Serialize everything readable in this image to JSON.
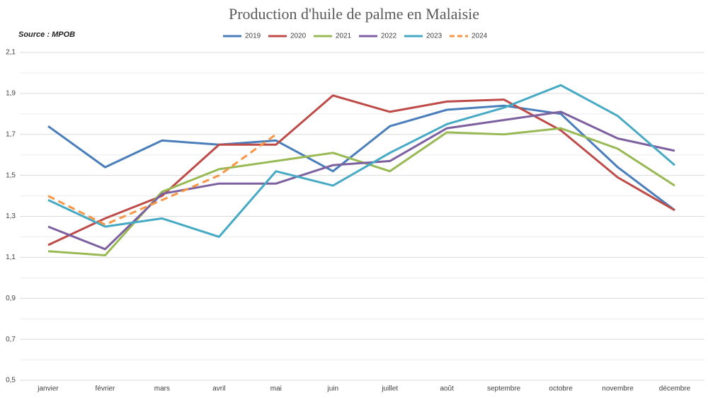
{
  "chart_data": {
    "type": "line",
    "title": "Production d'huile de palme en Malaisie",
    "source": "Source : MPOB",
    "categories": [
      "janvier",
      "février",
      "mars",
      "avril",
      "mai",
      "juin",
      "juillet",
      "août",
      "septembre",
      "octobre",
      "novembre",
      "décembre"
    ],
    "series": [
      {
        "name": "2019",
        "color": "#4a7ebb",
        "dashed": false,
        "values": [
          1.74,
          1.54,
          1.67,
          1.65,
          1.67,
          1.52,
          1.74,
          1.82,
          1.84,
          1.8,
          1.54,
          1.33
        ]
      },
      {
        "name": "2020",
        "color": "#be4b48",
        "dashed": false,
        "values": [
          1.16,
          1.29,
          1.4,
          1.65,
          1.65,
          1.89,
          1.81,
          1.86,
          1.87,
          1.72,
          1.49,
          1.33
        ]
      },
      {
        "name": "2021",
        "color": "#98b954",
        "dashed": false,
        "values": [
          1.13,
          1.11,
          1.42,
          1.53,
          1.57,
          1.61,
          1.52,
          1.71,
          1.7,
          1.73,
          1.63,
          1.45
        ]
      },
      {
        "name": "2022",
        "color": "#7d60a0",
        "dashed": false,
        "values": [
          1.25,
          1.14,
          1.41,
          1.46,
          1.46,
          1.55,
          1.57,
          1.73,
          1.77,
          1.81,
          1.68,
          1.62
        ]
      },
      {
        "name": "2023",
        "color": "#46aac5",
        "dashed": false,
        "values": [
          1.38,
          1.25,
          1.29,
          1.2,
          1.52,
          1.45,
          1.61,
          1.75,
          1.83,
          1.94,
          1.79,
          1.55
        ]
      },
      {
        "name": "2024",
        "color": "#f79646",
        "dashed": true,
        "values": [
          1.4,
          1.26,
          1.38,
          1.5,
          1.7,
          null,
          null,
          null,
          null,
          null,
          null,
          null
        ]
      }
    ],
    "ylim": [
      0.5,
      2.1
    ],
    "yticks": [
      {
        "value": 0.5,
        "label": "0,5"
      },
      {
        "value": 0.7,
        "label": "0,7"
      },
      {
        "value": 0.9,
        "label": "0,9"
      },
      {
        "value": 1.1,
        "label": "1,1"
      },
      {
        "value": 1.3,
        "label": "1,3"
      },
      {
        "value": 1.5,
        "label": "1,5"
      },
      {
        "value": 1.7,
        "label": "1,7"
      },
      {
        "value": 1.9,
        "label": "1,9"
      },
      {
        "value": 2.1,
        "label": "2,1"
      }
    ],
    "minor_yticks": [
      0.6,
      0.8,
      1.0,
      1.2,
      1.4,
      1.6,
      1.8,
      2.0
    ],
    "grid": true,
    "legend": "top"
  }
}
